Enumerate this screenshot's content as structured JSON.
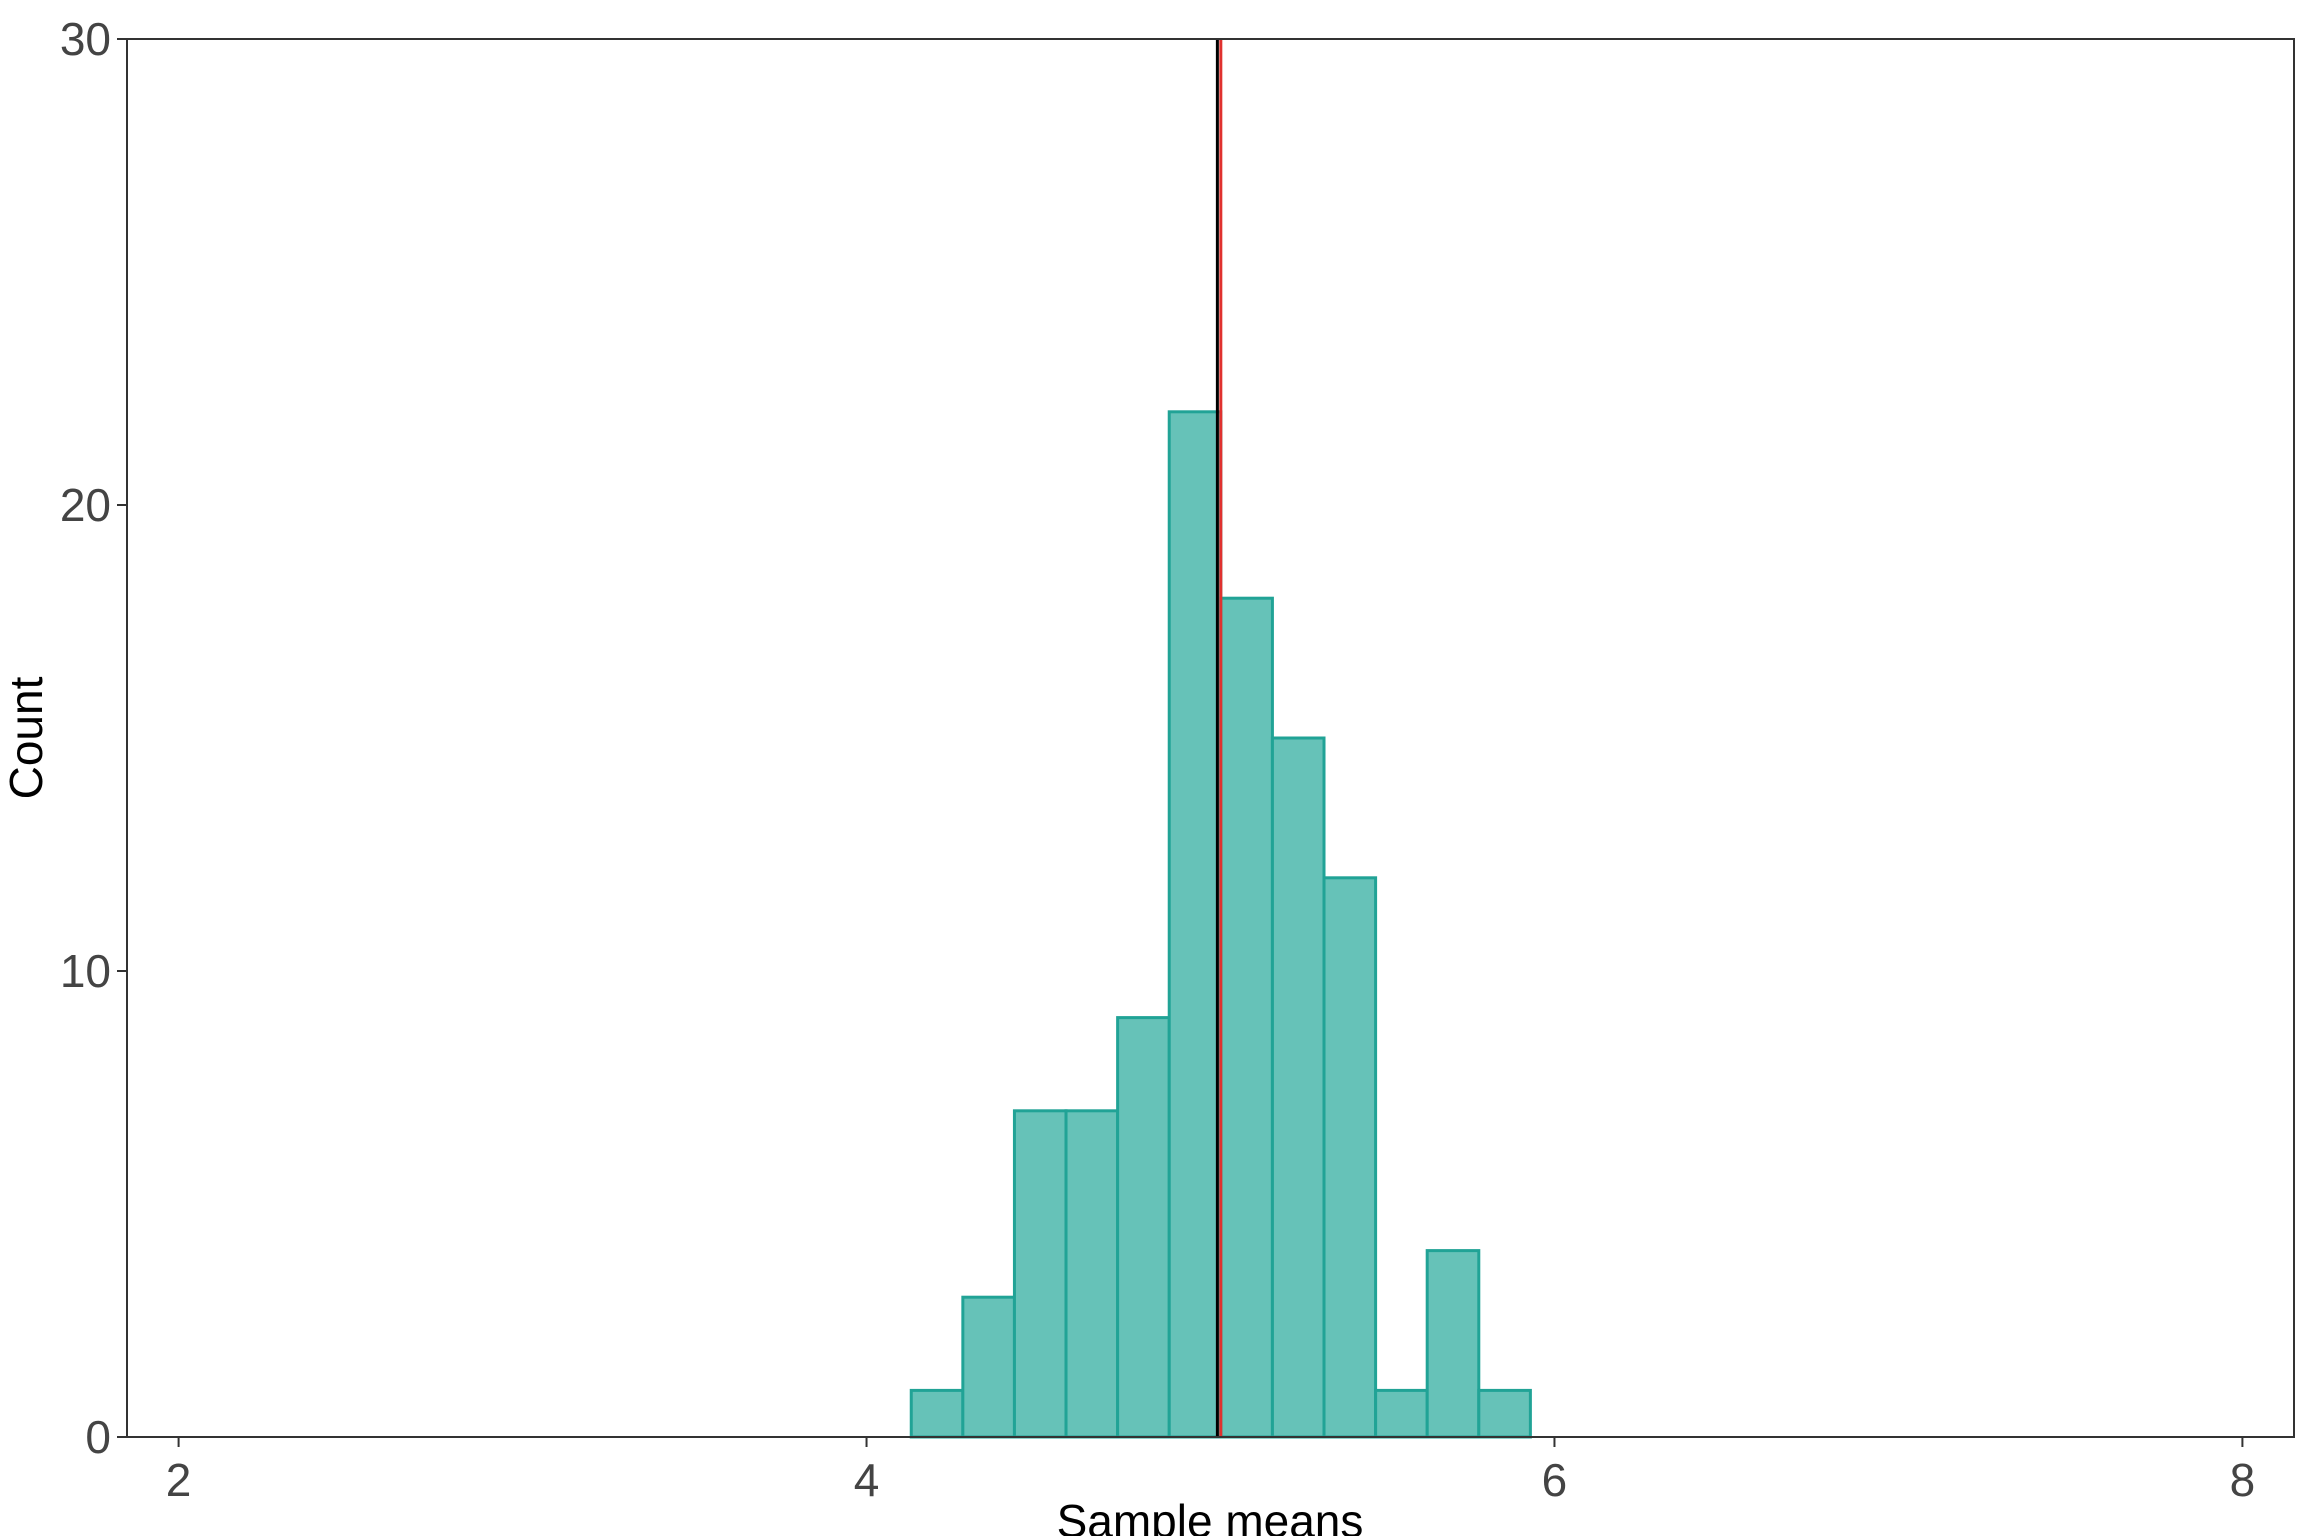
{
  "chart_data": {
    "type": "bar",
    "subtype": "histogram",
    "xlabel": "Sample means",
    "ylabel": "Count",
    "xlim": [
      1.85,
      8.15
    ],
    "ylim": [
      0,
      30
    ],
    "x_ticks": [
      2,
      4,
      6,
      8
    ],
    "y_ticks": [
      0,
      10,
      20,
      30
    ],
    "bin_width": 0.15,
    "bins": [
      {
        "start": 4.13,
        "end": 4.28,
        "count": 1
      },
      {
        "start": 4.28,
        "end": 4.43,
        "count": 3
      },
      {
        "start": 4.43,
        "end": 4.58,
        "count": 7
      },
      {
        "start": 4.58,
        "end": 4.73,
        "count": 7
      },
      {
        "start": 4.73,
        "end": 4.88,
        "count": 9
      },
      {
        "start": 4.88,
        "end": 5.03,
        "count": 22
      },
      {
        "start": 5.03,
        "end": 5.18,
        "count": 18
      },
      {
        "start": 5.18,
        "end": 5.33,
        "count": 15
      },
      {
        "start": 5.33,
        "end": 5.48,
        "count": 12
      },
      {
        "start": 5.48,
        "end": 5.63,
        "count": 1
      },
      {
        "start": 5.63,
        "end": 5.78,
        "count": 4
      },
      {
        "start": 5.78,
        "end": 5.93,
        "count": 1
      }
    ],
    "vlines": [
      {
        "x": 5.02,
        "color": "#000000"
      },
      {
        "x": 5.03,
        "color": "#e0312f"
      }
    ],
    "bar_fill": "#66c2b8",
    "bar_stroke": "#21a396",
    "grid": false,
    "legend": "none"
  }
}
